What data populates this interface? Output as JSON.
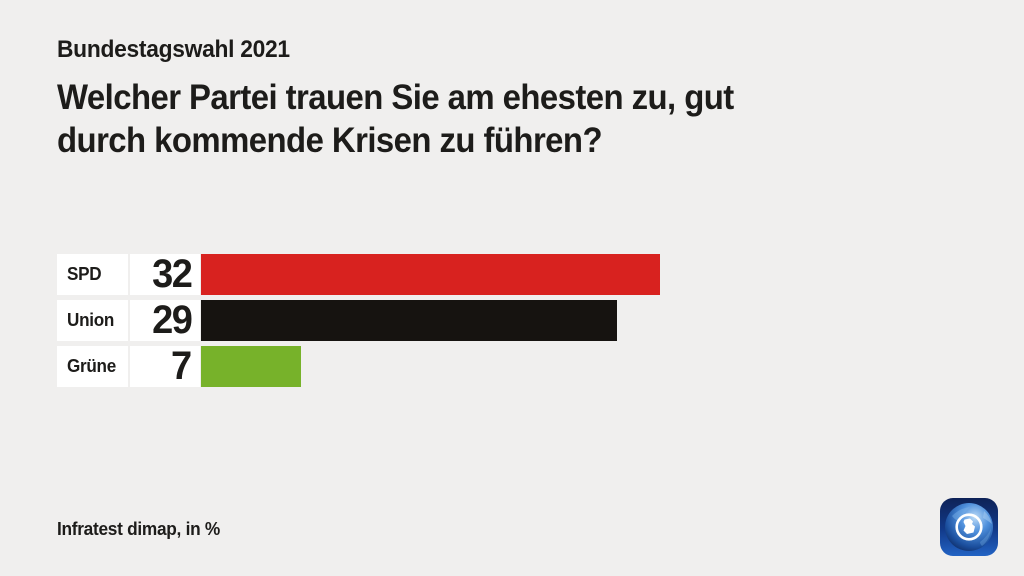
{
  "page": {
    "background_color": "#f0efee",
    "text_color": "#1d1c1a"
  },
  "header": {
    "kicker": "Bundestagswahl 2021",
    "title_line1": "Welcher Partei trauen Sie am ehesten zu, gut",
    "title_line2": "durch kommende Krisen zu führen?"
  },
  "chart_data": {
    "type": "bar",
    "orientation": "horizontal",
    "title": "Welcher Partei trauen Sie am ehesten zu, gut durch kommende Krisen zu führen?",
    "categories": [
      "SPD",
      "Union",
      "Grüne"
    ],
    "values": [
      32,
      29,
      7
    ],
    "bar_colors": [
      "#d8221f",
      "#161310",
      "#77b22a"
    ],
    "value_unit": "%",
    "xlim": [
      0,
      32
    ],
    "grid": false,
    "legend": "none",
    "source": "Infratest dimap, in %"
  },
  "footer": {
    "source_label": "Infratest dimap, in %",
    "logo_name": "tagesschau-globe-logo"
  }
}
